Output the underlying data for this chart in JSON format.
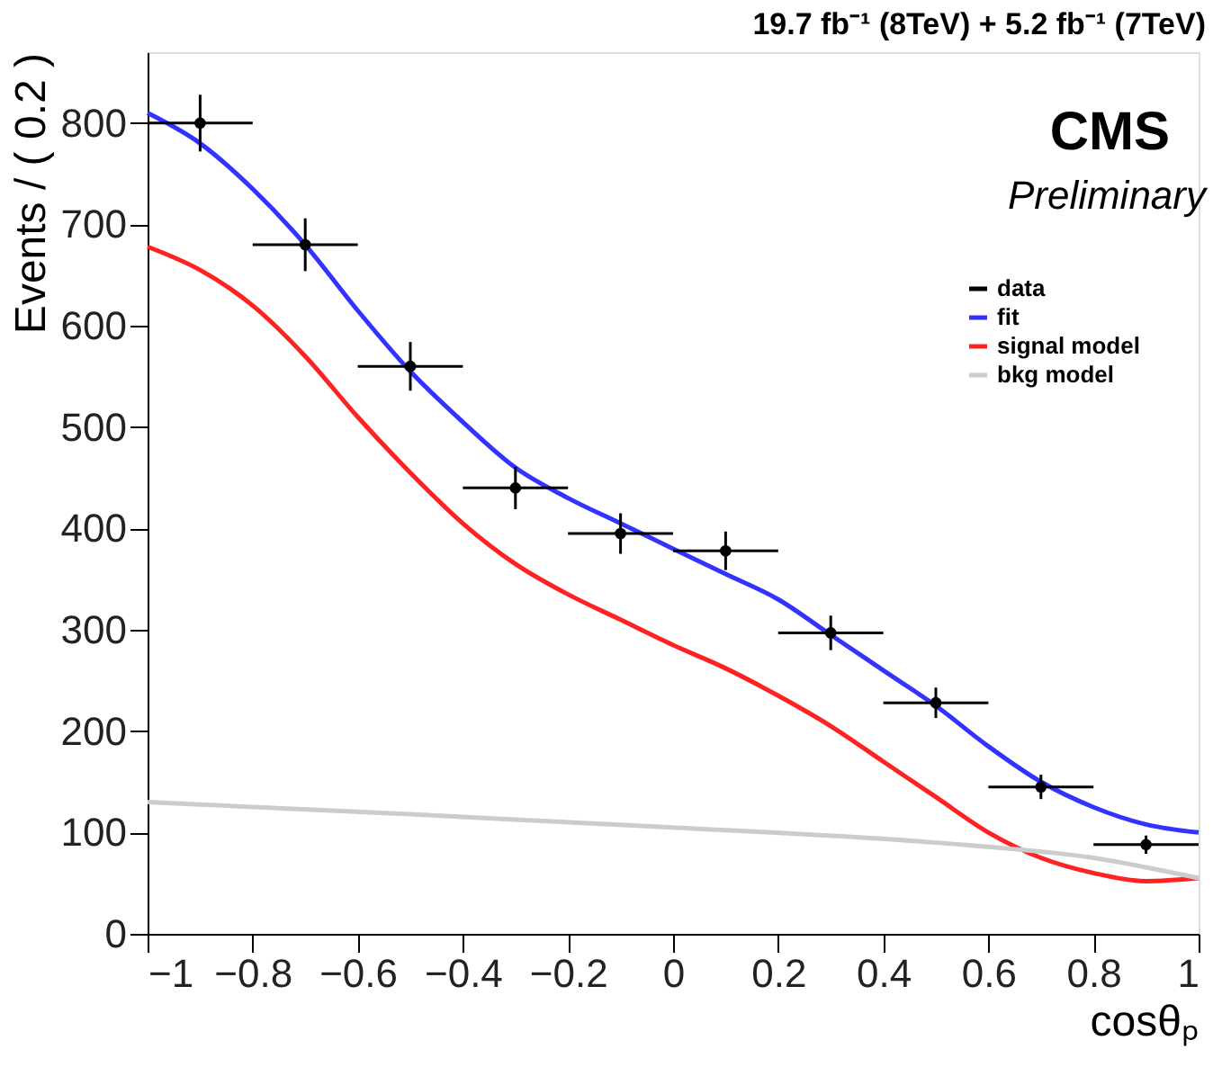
{
  "chart_data": {
    "type": "line",
    "title": "19.7 fb⁻¹ (8TeV) + 5.2 fb⁻¹ (7TeV)",
    "xlabel": "cosθₚ",
    "ylabel": "Events / ( 0.2 )",
    "annotations": [
      "CMS",
      "Preliminary"
    ],
    "xlim": [
      -1,
      1
    ],
    "xticks": [
      -1,
      -0.8,
      -0.6,
      -0.4,
      -0.2,
      0,
      0.2,
      0.4,
      0.6,
      0.8,
      1
    ],
    "ylim": [
      0,
      870
    ],
    "yticks": [
      0,
      100,
      200,
      300,
      400,
      500,
      600,
      700,
      800
    ],
    "grid": false,
    "legend": "top right",
    "line_style": "solid",
    "series": [
      {
        "name": "data",
        "type": "scatter",
        "marker": "circle",
        "color": "#000000",
        "x": [
          -0.9,
          -0.7,
          -0.5,
          -0.3,
          -0.1,
          0.1,
          0.3,
          0.5,
          0.7,
          0.9
        ],
        "values": [
          800,
          680,
          560,
          440,
          395,
          378,
          297,
          228,
          145,
          88
        ],
        "errors": [
          28,
          26,
          24,
          21,
          20,
          19,
          17,
          15,
          12,
          9
        ],
        "xerrors": [
          0.1,
          0.1,
          0.1,
          0.1,
          0.1,
          0.1,
          0.1,
          0.1,
          0.1,
          0.1
        ]
      },
      {
        "name": "fit",
        "color": "#3333ff",
        "x": [
          -1,
          -0.9,
          -0.8,
          -0.7,
          -0.6,
          -0.5,
          -0.4,
          -0.3,
          -0.2,
          -0.1,
          0,
          0.1,
          0.2,
          0.3,
          0.4,
          0.5,
          0.6,
          0.7,
          0.8,
          0.9,
          1
        ],
        "values": [
          810,
          780,
          735,
          680,
          615,
          555,
          505,
          460,
          430,
          405,
          380,
          355,
          330,
          295,
          260,
          225,
          185,
          150,
          125,
          108,
          100
        ]
      },
      {
        "name": "signal model",
        "color": "#ff2222",
        "x": [
          -1,
          -0.9,
          -0.8,
          -0.7,
          -0.6,
          -0.5,
          -0.4,
          -0.3,
          -0.2,
          -0.1,
          0,
          0.1,
          0.2,
          0.3,
          0.4,
          0.5,
          0.6,
          0.7,
          0.8,
          0.9,
          1
        ],
        "values": [
          678,
          655,
          620,
          570,
          510,
          455,
          405,
          365,
          335,
          310,
          285,
          262,
          235,
          205,
          170,
          135,
          100,
          75,
          60,
          52,
          55
        ]
      },
      {
        "name": "bkg model",
        "color": "#cccccc",
        "x": [
          -1,
          -0.5,
          0,
          0.5,
          0.8,
          1
        ],
        "values": [
          130,
          118,
          105,
          90,
          75,
          55
        ]
      }
    ]
  }
}
